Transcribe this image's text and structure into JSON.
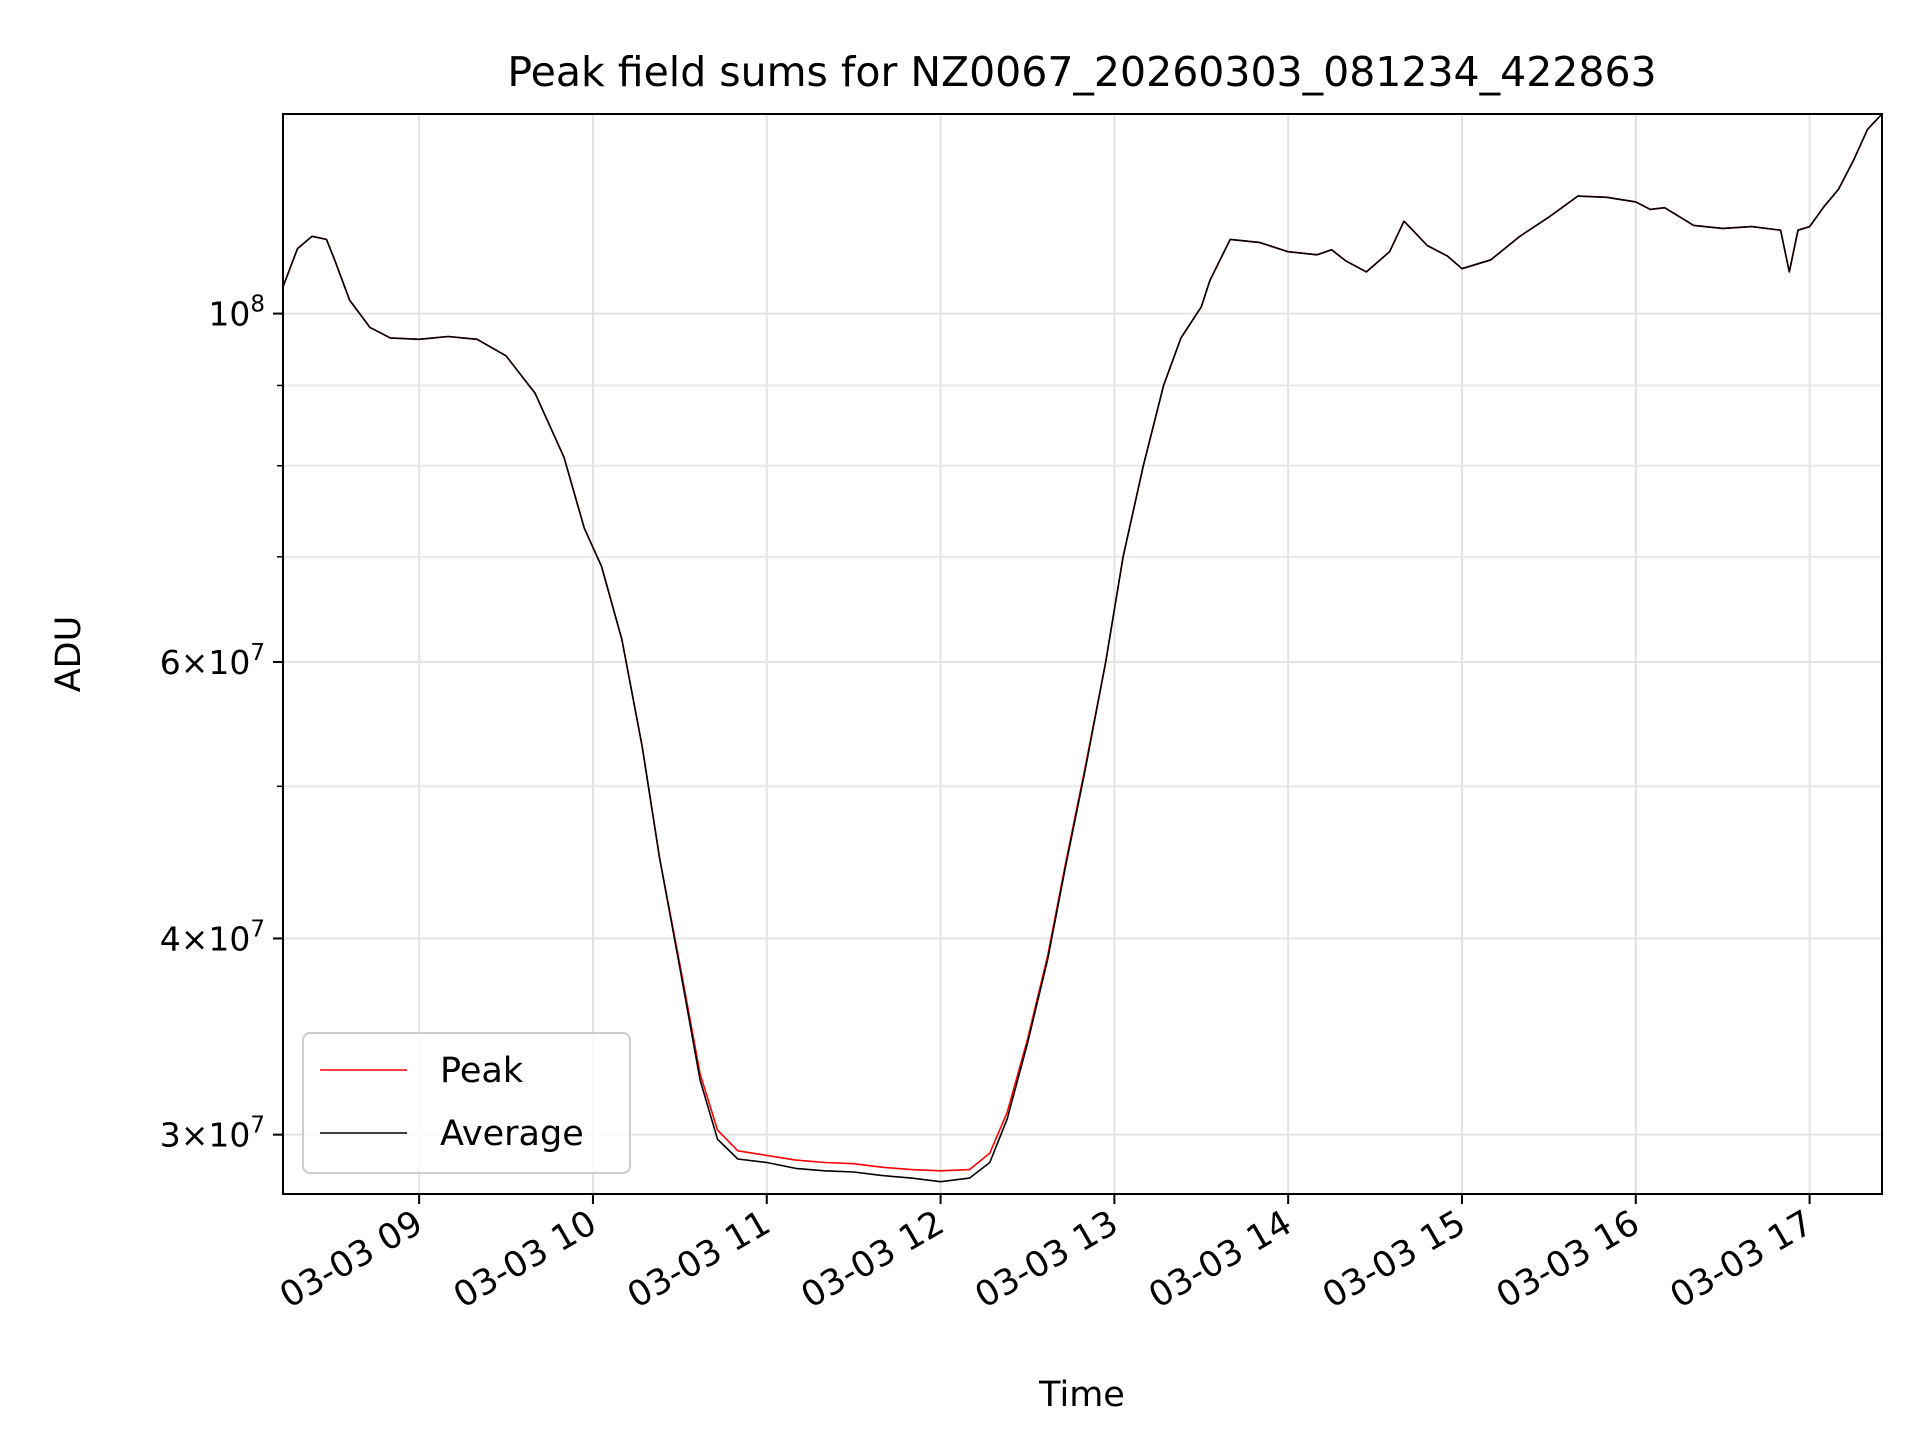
{
  "chart_data": {
    "type": "line",
    "title": "Peak field sums for NZ0067_20260303_081234_422863",
    "xlabel": "Time",
    "ylabel": "ADU",
    "y_scale": "log",
    "xlim": [
      "2026-03-03 08:13",
      "2026-03-03 17:25"
    ],
    "ylim": [
      27500000,
      134000000
    ],
    "grid": true,
    "legend_position": "lower-left",
    "x_ticks": [
      {
        "t": "2026-03-03 09:00",
        "label": "03-03 09"
      },
      {
        "t": "2026-03-03 10:00",
        "label": "03-03 10"
      },
      {
        "t": "2026-03-03 11:00",
        "label": "03-03 11"
      },
      {
        "t": "2026-03-03 12:00",
        "label": "03-03 12"
      },
      {
        "t": "2026-03-03 13:00",
        "label": "03-03 13"
      },
      {
        "t": "2026-03-03 14:00",
        "label": "03-03 14"
      },
      {
        "t": "2026-03-03 15:00",
        "label": "03-03 15"
      },
      {
        "t": "2026-03-03 16:00",
        "label": "03-03 16"
      },
      {
        "t": "2026-03-03 17:00",
        "label": "03-03 17"
      }
    ],
    "y_major_ticks": [
      {
        "value": 30000000,
        "mant": "3",
        "exp": "7"
      },
      {
        "value": 40000000,
        "mant": "4",
        "exp": "7"
      },
      {
        "value": 60000000,
        "mant": "6",
        "exp": "7"
      },
      {
        "value": 100000000,
        "mant": "",
        "exp": "8"
      }
    ],
    "y_minor_ticks": [
      50000000,
      70000000,
      80000000,
      90000000
    ],
    "series": [
      {
        "name": "Peak",
        "color": "#ff0000",
        "points": [
          [
            "2026-03-03 08:13",
            104000000
          ],
          [
            "2026-03-03 08:18",
            110000000
          ],
          [
            "2026-03-03 08:23",
            112000000
          ],
          [
            "2026-03-03 08:28",
            111500000
          ],
          [
            "2026-03-03 08:31",
            108000000
          ],
          [
            "2026-03-03 08:36",
            102000000
          ],
          [
            "2026-03-03 08:43",
            98000000
          ],
          [
            "2026-03-03 08:50",
            96500000
          ],
          [
            "2026-03-03 09:00",
            96300000
          ],
          [
            "2026-03-03 09:10",
            96700000
          ],
          [
            "2026-03-03 09:20",
            96300000
          ],
          [
            "2026-03-03 09:30",
            94000000
          ],
          [
            "2026-03-03 09:40",
            89000000
          ],
          [
            "2026-03-03 09:50",
            81000000
          ],
          [
            "2026-03-03 09:57",
            73000000
          ],
          [
            "2026-03-03 10:03",
            69000000
          ],
          [
            "2026-03-03 10:10",
            62000000
          ],
          [
            "2026-03-03 10:17",
            53000000
          ],
          [
            "2026-03-03 10:23",
            45000000
          ],
          [
            "2026-03-03 10:30",
            38500000
          ],
          [
            "2026-03-03 10:37",
            32800000
          ],
          [
            "2026-03-03 10:43",
            30200000
          ],
          [
            "2026-03-03 10:50",
            29300000
          ],
          [
            "2026-03-03 11:00",
            29100000
          ],
          [
            "2026-03-03 11:10",
            28900000
          ],
          [
            "2026-03-03 11:20",
            28800000
          ],
          [
            "2026-03-03 11:30",
            28750000
          ],
          [
            "2026-03-03 11:40",
            28600000
          ],
          [
            "2026-03-03 11:50",
            28500000
          ],
          [
            "2026-03-03 12:00",
            28450000
          ],
          [
            "2026-03-03 12:10",
            28500000
          ],
          [
            "2026-03-03 12:17",
            29200000
          ],
          [
            "2026-03-03 12:23",
            31000000
          ],
          [
            "2026-03-03 12:30",
            34500000
          ],
          [
            "2026-03-03 12:37",
            39000000
          ],
          [
            "2026-03-03 12:43",
            44500000
          ],
          [
            "2026-03-03 12:50",
            51500000
          ],
          [
            "2026-03-03 12:57",
            60000000
          ],
          [
            "2026-03-03 13:03",
            70000000
          ],
          [
            "2026-03-03 13:10",
            80000000
          ],
          [
            "2026-03-03 13:17",
            90000000
          ],
          [
            "2026-03-03 13:23",
            96500000
          ],
          [
            "2026-03-03 13:30",
            101000000
          ],
          [
            "2026-03-03 13:33",
            105000000
          ],
          [
            "2026-03-03 13:40",
            111500000
          ],
          [
            "2026-03-03 13:50",
            111000000
          ],
          [
            "2026-03-03 14:00",
            109500000
          ],
          [
            "2026-03-03 14:10",
            109000000
          ],
          [
            "2026-03-03 14:15",
            109800000
          ],
          [
            "2026-03-03 14:20",
            108000000
          ],
          [
            "2026-03-03 14:27",
            106300000
          ],
          [
            "2026-03-03 14:35",
            109500000
          ],
          [
            "2026-03-03 14:40",
            114500000
          ],
          [
            "2026-03-03 14:43",
            113000000
          ],
          [
            "2026-03-03 14:48",
            110500000
          ],
          [
            "2026-03-03 14:55",
            108800000
          ],
          [
            "2026-03-03 15:00",
            106800000
          ],
          [
            "2026-03-03 15:10",
            108200000
          ],
          [
            "2026-03-03 15:20",
            112000000
          ],
          [
            "2026-03-03 15:30",
            115200000
          ],
          [
            "2026-03-03 15:40",
            118800000
          ],
          [
            "2026-03-03 15:50",
            118600000
          ],
          [
            "2026-03-03 16:00",
            117800000
          ],
          [
            "2026-03-03 16:05",
            116500000
          ],
          [
            "2026-03-03 16:10",
            116800000
          ],
          [
            "2026-03-03 16:20",
            113800000
          ],
          [
            "2026-03-03 16:30",
            113300000
          ],
          [
            "2026-03-03 16:40",
            113600000
          ],
          [
            "2026-03-03 16:50",
            113000000
          ],
          [
            "2026-03-03 16:53",
            106300000
          ],
          [
            "2026-03-03 16:56",
            113000000
          ],
          [
            "2026-03-03 17:00",
            113600000
          ],
          [
            "2026-03-03 17:05",
            117000000
          ],
          [
            "2026-03-03 17:10",
            120000000
          ],
          [
            "2026-03-03 17:15",
            125000000
          ],
          [
            "2026-03-03 17:20",
            131000000
          ],
          [
            "2026-03-03 17:25",
            134000000
          ]
        ]
      },
      {
        "name": "Average",
        "color": "#000000",
        "points": [
          [
            "2026-03-03 08:13",
            104000000
          ],
          [
            "2026-03-03 08:18",
            110000000
          ],
          [
            "2026-03-03 08:23",
            112000000
          ],
          [
            "2026-03-03 08:28",
            111500000
          ],
          [
            "2026-03-03 08:31",
            108000000
          ],
          [
            "2026-03-03 08:36",
            102000000
          ],
          [
            "2026-03-03 08:43",
            98000000
          ],
          [
            "2026-03-03 08:50",
            96500000
          ],
          [
            "2026-03-03 09:00",
            96300000
          ],
          [
            "2026-03-03 09:10",
            96700000
          ],
          [
            "2026-03-03 09:20",
            96300000
          ],
          [
            "2026-03-03 09:30",
            94000000
          ],
          [
            "2026-03-03 09:40",
            89000000
          ],
          [
            "2026-03-03 09:50",
            81000000
          ],
          [
            "2026-03-03 09:57",
            73000000
          ],
          [
            "2026-03-03 10:03",
            69000000
          ],
          [
            "2026-03-03 10:10",
            62000000
          ],
          [
            "2026-03-03 10:17",
            53000000
          ],
          [
            "2026-03-03 10:23",
            45000000
          ],
          [
            "2026-03-03 10:30",
            38300000
          ],
          [
            "2026-03-03 10:37",
            32500000
          ],
          [
            "2026-03-03 10:43",
            29800000
          ],
          [
            "2026-03-03 10:50",
            28950000
          ],
          [
            "2026-03-03 11:00",
            28800000
          ],
          [
            "2026-03-03 11:10",
            28550000
          ],
          [
            "2026-03-03 11:20",
            28450000
          ],
          [
            "2026-03-03 11:30",
            28400000
          ],
          [
            "2026-03-03 11:40",
            28250000
          ],
          [
            "2026-03-03 11:50",
            28150000
          ],
          [
            "2026-03-03 12:00",
            28000000
          ],
          [
            "2026-03-03 12:10",
            28150000
          ],
          [
            "2026-03-03 12:17",
            28800000
          ],
          [
            "2026-03-03 12:23",
            30700000
          ],
          [
            "2026-03-03 12:30",
            34300000
          ],
          [
            "2026-03-03 12:37",
            38800000
          ],
          [
            "2026-03-03 12:43",
            44300000
          ],
          [
            "2026-03-03 12:50",
            51300000
          ],
          [
            "2026-03-03 12:57",
            60000000
          ],
          [
            "2026-03-03 13:03",
            70000000
          ],
          [
            "2026-03-03 13:10",
            80000000
          ],
          [
            "2026-03-03 13:17",
            90000000
          ],
          [
            "2026-03-03 13:23",
            96500000
          ],
          [
            "2026-03-03 13:30",
            101000000
          ],
          [
            "2026-03-03 13:33",
            105000000
          ],
          [
            "2026-03-03 13:40",
            111500000
          ],
          [
            "2026-03-03 13:50",
            111000000
          ],
          [
            "2026-03-03 14:00",
            109500000
          ],
          [
            "2026-03-03 14:10",
            109000000
          ],
          [
            "2026-03-03 14:15",
            109800000
          ],
          [
            "2026-03-03 14:20",
            108000000
          ],
          [
            "2026-03-03 14:27",
            106300000
          ],
          [
            "2026-03-03 14:35",
            109500000
          ],
          [
            "2026-03-03 14:40",
            114500000
          ],
          [
            "2026-03-03 14:43",
            113000000
          ],
          [
            "2026-03-03 14:48",
            110500000
          ],
          [
            "2026-03-03 14:55",
            108800000
          ],
          [
            "2026-03-03 15:00",
            106800000
          ],
          [
            "2026-03-03 15:10",
            108200000
          ],
          [
            "2026-03-03 15:20",
            112000000
          ],
          [
            "2026-03-03 15:30",
            115200000
          ],
          [
            "2026-03-03 15:40",
            118800000
          ],
          [
            "2026-03-03 15:50",
            118600000
          ],
          [
            "2026-03-03 16:00",
            117800000
          ],
          [
            "2026-03-03 16:05",
            116500000
          ],
          [
            "2026-03-03 16:10",
            116800000
          ],
          [
            "2026-03-03 16:20",
            113800000
          ],
          [
            "2026-03-03 16:30",
            113300000
          ],
          [
            "2026-03-03 16:40",
            113600000
          ],
          [
            "2026-03-03 16:50",
            113000000
          ],
          [
            "2026-03-03 16:53",
            106300000
          ],
          [
            "2026-03-03 16:56",
            113000000
          ],
          [
            "2026-03-03 17:00",
            113600000
          ],
          [
            "2026-03-03 17:05",
            117000000
          ],
          [
            "2026-03-03 17:10",
            120000000
          ],
          [
            "2026-03-03 17:15",
            125000000
          ],
          [
            "2026-03-03 17:20",
            131000000
          ],
          [
            "2026-03-03 17:25",
            134000000
          ]
        ]
      }
    ]
  }
}
